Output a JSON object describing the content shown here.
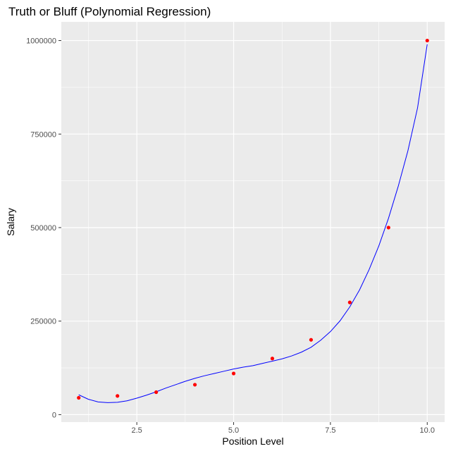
{
  "chart_data": {
    "type": "scatter",
    "title": "Truth or Bluff (Polynomial Regression)",
    "xlabel": "Position Level",
    "ylabel": "Salary",
    "xlim": [
      0.55,
      10.45
    ],
    "ylim": [
      -20000,
      1050000
    ],
    "x_ticks": [
      2.5,
      5.0,
      7.5,
      10.0
    ],
    "x_tick_labels": [
      "2.5",
      "5.0",
      "7.5",
      "10.0"
    ],
    "y_ticks": [
      0,
      250000,
      500000,
      750000,
      1000000
    ],
    "y_tick_labels": [
      "0",
      "250000",
      "500000",
      "750000",
      "1000000"
    ],
    "grid": true,
    "panel_background": "#ebebeb",
    "grid_color": "#ffffff",
    "series": [
      {
        "kind": "points",
        "color": "#ff0000",
        "x": [
          1,
          2,
          3,
          4,
          5,
          6,
          7,
          8,
          9,
          10
        ],
        "y": [
          45000,
          50000,
          60000,
          80000,
          110000,
          150000,
          200000,
          300000,
          500000,
          1000000
        ]
      },
      {
        "kind": "line",
        "color": "#0000ff",
        "x": [
          1.0,
          1.25,
          1.5,
          1.75,
          2.0,
          2.25,
          2.5,
          2.75,
          3.0,
          3.25,
          3.5,
          3.75,
          4.0,
          4.25,
          4.5,
          4.75,
          5.0,
          5.25,
          5.5,
          5.75,
          6.0,
          6.25,
          6.5,
          6.75,
          7.0,
          7.25,
          7.5,
          7.75,
          8.0,
          8.25,
          8.5,
          8.75,
          9.0,
          9.25,
          9.5,
          9.75,
          10.0
        ],
        "y": [
          53000,
          41000,
          34000,
          32000,
          33000,
          37000,
          44000,
          52000,
          61000,
          71000,
          80000,
          89000,
          97000,
          104000,
          110000,
          116000,
          122000,
          127000,
          131000,
          137000,
          143000,
          149000,
          157000,
          167000,
          180000,
          199000,
          222000,
          251000,
          288000,
          333000,
          388000,
          451000,
          525000,
          610000,
          705000,
          820000,
          990000
        ]
      }
    ]
  }
}
